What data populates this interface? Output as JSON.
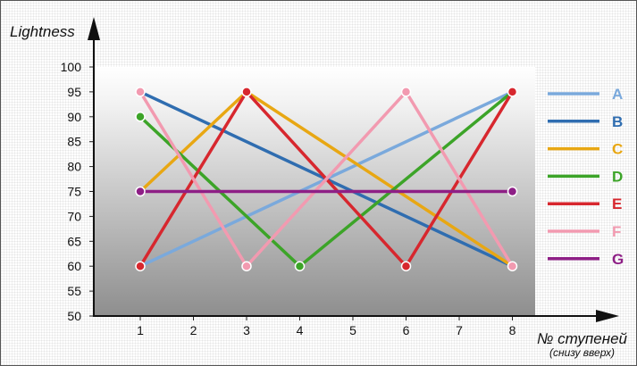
{
  "chart_data": {
    "type": "line",
    "title": "",
    "ylabel": "Lightness",
    "xlabel": "№ ступеней",
    "xlabel_sub": "(снизу вверх)",
    "x": [
      1,
      2,
      3,
      4,
      5,
      6,
      7,
      8
    ],
    "y_ticks": [
      50,
      55,
      60,
      65,
      70,
      75,
      80,
      85,
      90,
      95,
      100
    ],
    "xlim": [
      0,
      8.5
    ],
    "ylim": [
      50,
      100
    ],
    "legend_position": "right",
    "series": [
      {
        "name": "A",
        "color": "#7aa9dc",
        "points": [
          [
            1,
            60
          ],
          [
            8,
            95
          ]
        ],
        "markers": []
      },
      {
        "name": "B",
        "color": "#2f6db0",
        "points": [
          [
            1,
            95
          ],
          [
            8,
            60
          ]
        ],
        "markers": []
      },
      {
        "name": "C",
        "color": "#e8a713",
        "points": [
          [
            1,
            75
          ],
          [
            3,
            95
          ],
          [
            8,
            60
          ]
        ],
        "markers": []
      },
      {
        "name": "D",
        "color": "#3ca428",
        "points": [
          [
            1,
            90
          ],
          [
            4,
            60
          ],
          [
            8,
            95
          ]
        ],
        "markers": [
          [
            1,
            90
          ],
          [
            4,
            60
          ]
        ]
      },
      {
        "name": "E",
        "color": "#d7272e",
        "points": [
          [
            1,
            60
          ],
          [
            3,
            95
          ],
          [
            6,
            60
          ],
          [
            8,
            95
          ]
        ],
        "markers": [
          [
            1,
            60
          ],
          [
            3,
            95
          ],
          [
            6,
            60
          ],
          [
            8,
            95
          ]
        ]
      },
      {
        "name": "F",
        "color": "#f29ab0",
        "points": [
          [
            1,
            95
          ],
          [
            3,
            60
          ],
          [
            6,
            95
          ],
          [
            8,
            60
          ]
        ],
        "markers": [
          [
            1,
            95
          ],
          [
            3,
            60
          ],
          [
            6,
            95
          ],
          [
            8,
            60
          ]
        ]
      },
      {
        "name": "G",
        "color": "#8e1f86",
        "points": [
          [
            1,
            75
          ],
          [
            8,
            75
          ]
        ],
        "markers": [
          [
            1,
            75
          ],
          [
            8,
            75
          ]
        ]
      }
    ]
  }
}
